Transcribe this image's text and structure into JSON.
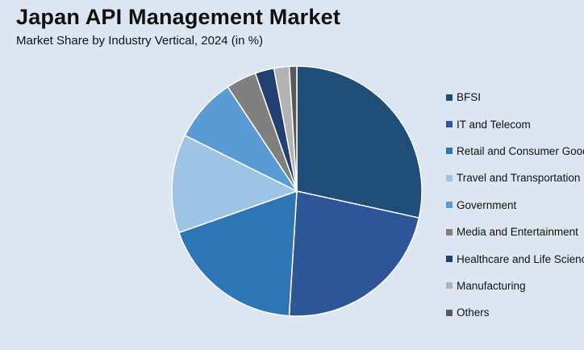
{
  "header": {
    "title": "Japan API Management Market",
    "subtitle": "Market Share by Industry Vertical, 2024 (in %)"
  },
  "chart_data": {
    "type": "pie",
    "title": "Japan API Management Market",
    "subtitle": "Market Share by Industry Vertical, 2024 (in %)",
    "legend_position": "right",
    "slices": [
      {
        "label": "BFSI",
        "value": 29,
        "color": "#1f4e79"
      },
      {
        "label": "IT and Telecom",
        "value": 23,
        "color": "#2e5597"
      },
      {
        "label": "Retail and Consumer Goods",
        "value": 19,
        "color": "#2e75b6"
      },
      {
        "label": "Travel and Transportation",
        "value": 13,
        "color": "#9dc3e6"
      },
      {
        "label": "Government",
        "value": 8.5,
        "color": "#5b9bd5"
      },
      {
        "label": "Media and Entertainment",
        "value": 4,
        "color": "#7f7f7f"
      },
      {
        "label": "Healthcare and Life Sciences",
        "value": 2.5,
        "color": "#223f72"
      },
      {
        "label": "Manufacturing",
        "value": 2,
        "color": "#b3b3b3"
      },
      {
        "label": "Others",
        "value": 1,
        "color": "#595959"
      }
    ]
  }
}
